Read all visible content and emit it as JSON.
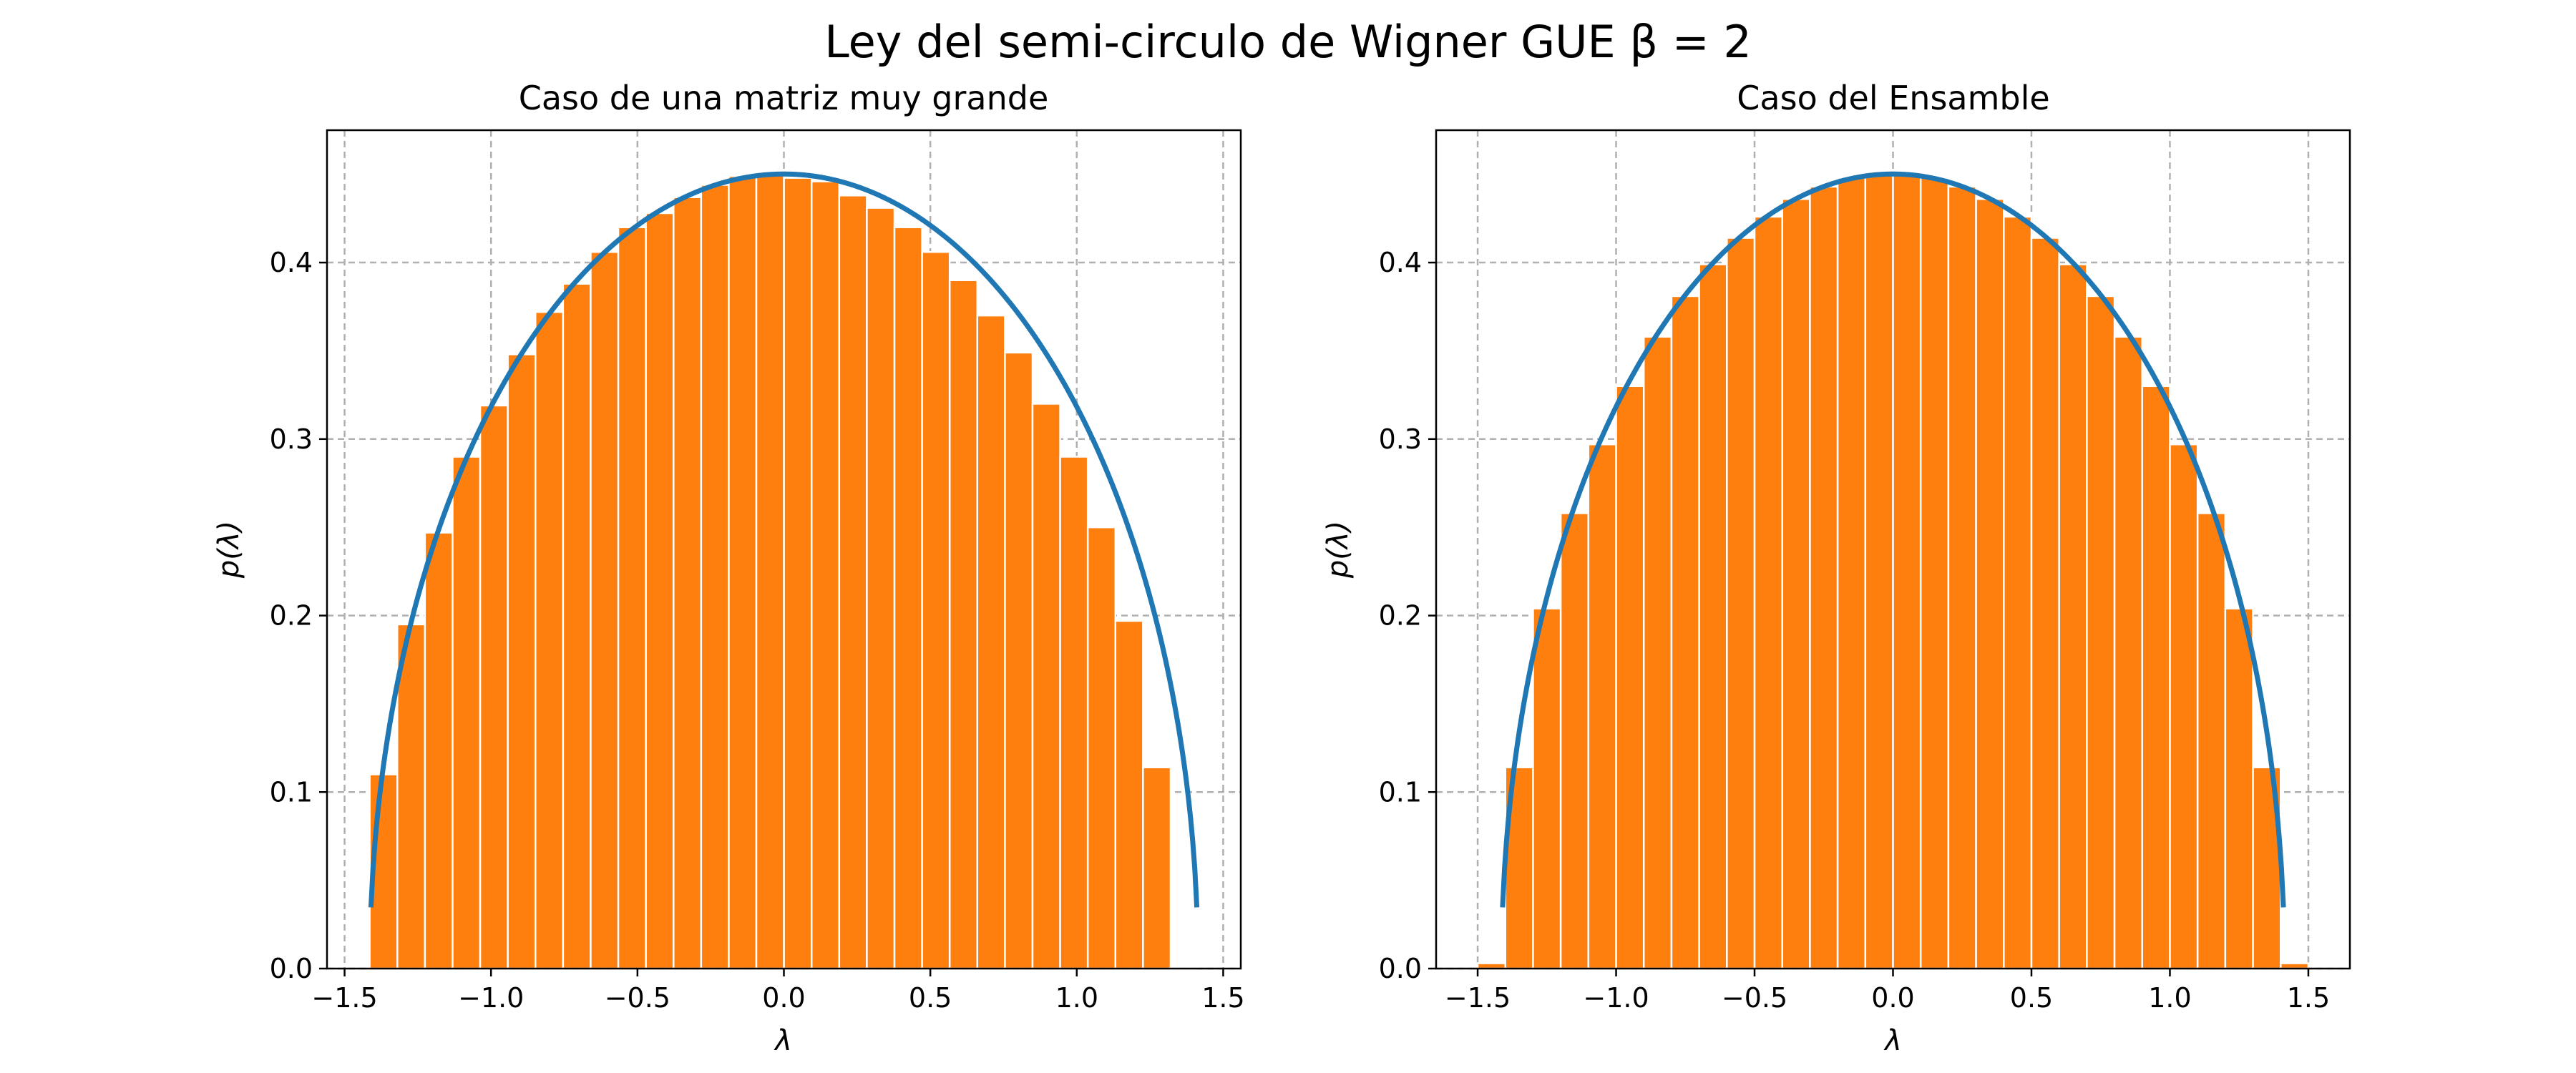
{
  "figure": {
    "suptitle": "Ley del semi-circulo de Wigner GUE β = 2"
  },
  "colors": {
    "histogram": "#ff7f0e",
    "curve": "#1f77b4",
    "grid": "#b0b0b0"
  },
  "chart_data": [
    {
      "type": "bar",
      "title": "Caso de una matriz muy grande",
      "xlabel": "λ",
      "ylabel": "p(λ)",
      "xlim": [
        -1.56,
        1.56
      ],
      "ylim": [
        0,
        0.475
      ],
      "xticks": [
        -1.5,
        -1.0,
        -0.5,
        0.0,
        0.5,
        1.0,
        1.5
      ],
      "xtick_labels": [
        "−1.5",
        "−1.0",
        "−0.5",
        "0.0",
        "0.5",
        "1.0",
        "1.5"
      ],
      "yticks": [
        0.0,
        0.1,
        0.2,
        0.3,
        0.4
      ],
      "ytick_labels": [
        "0.0",
        "0.1",
        "0.2",
        "0.3",
        "0.4"
      ],
      "grid": true,
      "histogram": {
        "bin_start": -1.4142,
        "bin_width": 0.0943,
        "values": [
          0.11,
          0.195,
          0.247,
          0.29,
          0.319,
          0.348,
          0.372,
          0.388,
          0.406,
          0.42,
          0.428,
          0.437,
          0.444,
          0.449,
          0.45,
          0.448,
          0.446,
          0.438,
          0.431,
          0.42,
          0.406,
          0.39,
          0.37,
          0.349,
          0.32,
          0.29,
          0.25,
          0.197,
          0.114,
          0.001
        ]
      },
      "curve": {
        "name": "semicircle",
        "radius": 1.4142,
        "x_from": -1.41,
        "x_to": 1.41
      }
    },
    {
      "type": "bar",
      "title": "Caso del Ensamble",
      "xlabel": "λ",
      "ylabel": "p(λ)",
      "xlim": [
        -1.65,
        1.65
      ],
      "ylim": [
        0,
        0.475
      ],
      "xticks": [
        -1.5,
        -1.0,
        -0.5,
        0.0,
        0.5,
        1.0,
        1.5
      ],
      "xtick_labels": [
        "−1.5",
        "−1.0",
        "−0.5",
        "0.0",
        "0.5",
        "1.0",
        "1.5"
      ],
      "yticks": [
        0.0,
        0.1,
        0.2,
        0.3,
        0.4
      ],
      "ytick_labels": [
        "0.0",
        "0.1",
        "0.2",
        "0.3",
        "0.4"
      ],
      "grid": true,
      "histogram": {
        "bin_start": -1.5,
        "bin_width": 0.1,
        "values": [
          0.003,
          0.114,
          0.204,
          0.258,
          0.297,
          0.33,
          0.358,
          0.381,
          0.399,
          0.414,
          0.426,
          0.436,
          0.443,
          0.448,
          0.451,
          0.451,
          0.448,
          0.443,
          0.436,
          0.426,
          0.414,
          0.399,
          0.381,
          0.358,
          0.33,
          0.297,
          0.258,
          0.204,
          0.114,
          0.003
        ]
      },
      "curve": {
        "name": "semicircle",
        "radius": 1.4142,
        "x_from": -1.41,
        "x_to": 1.41
      }
    }
  ]
}
